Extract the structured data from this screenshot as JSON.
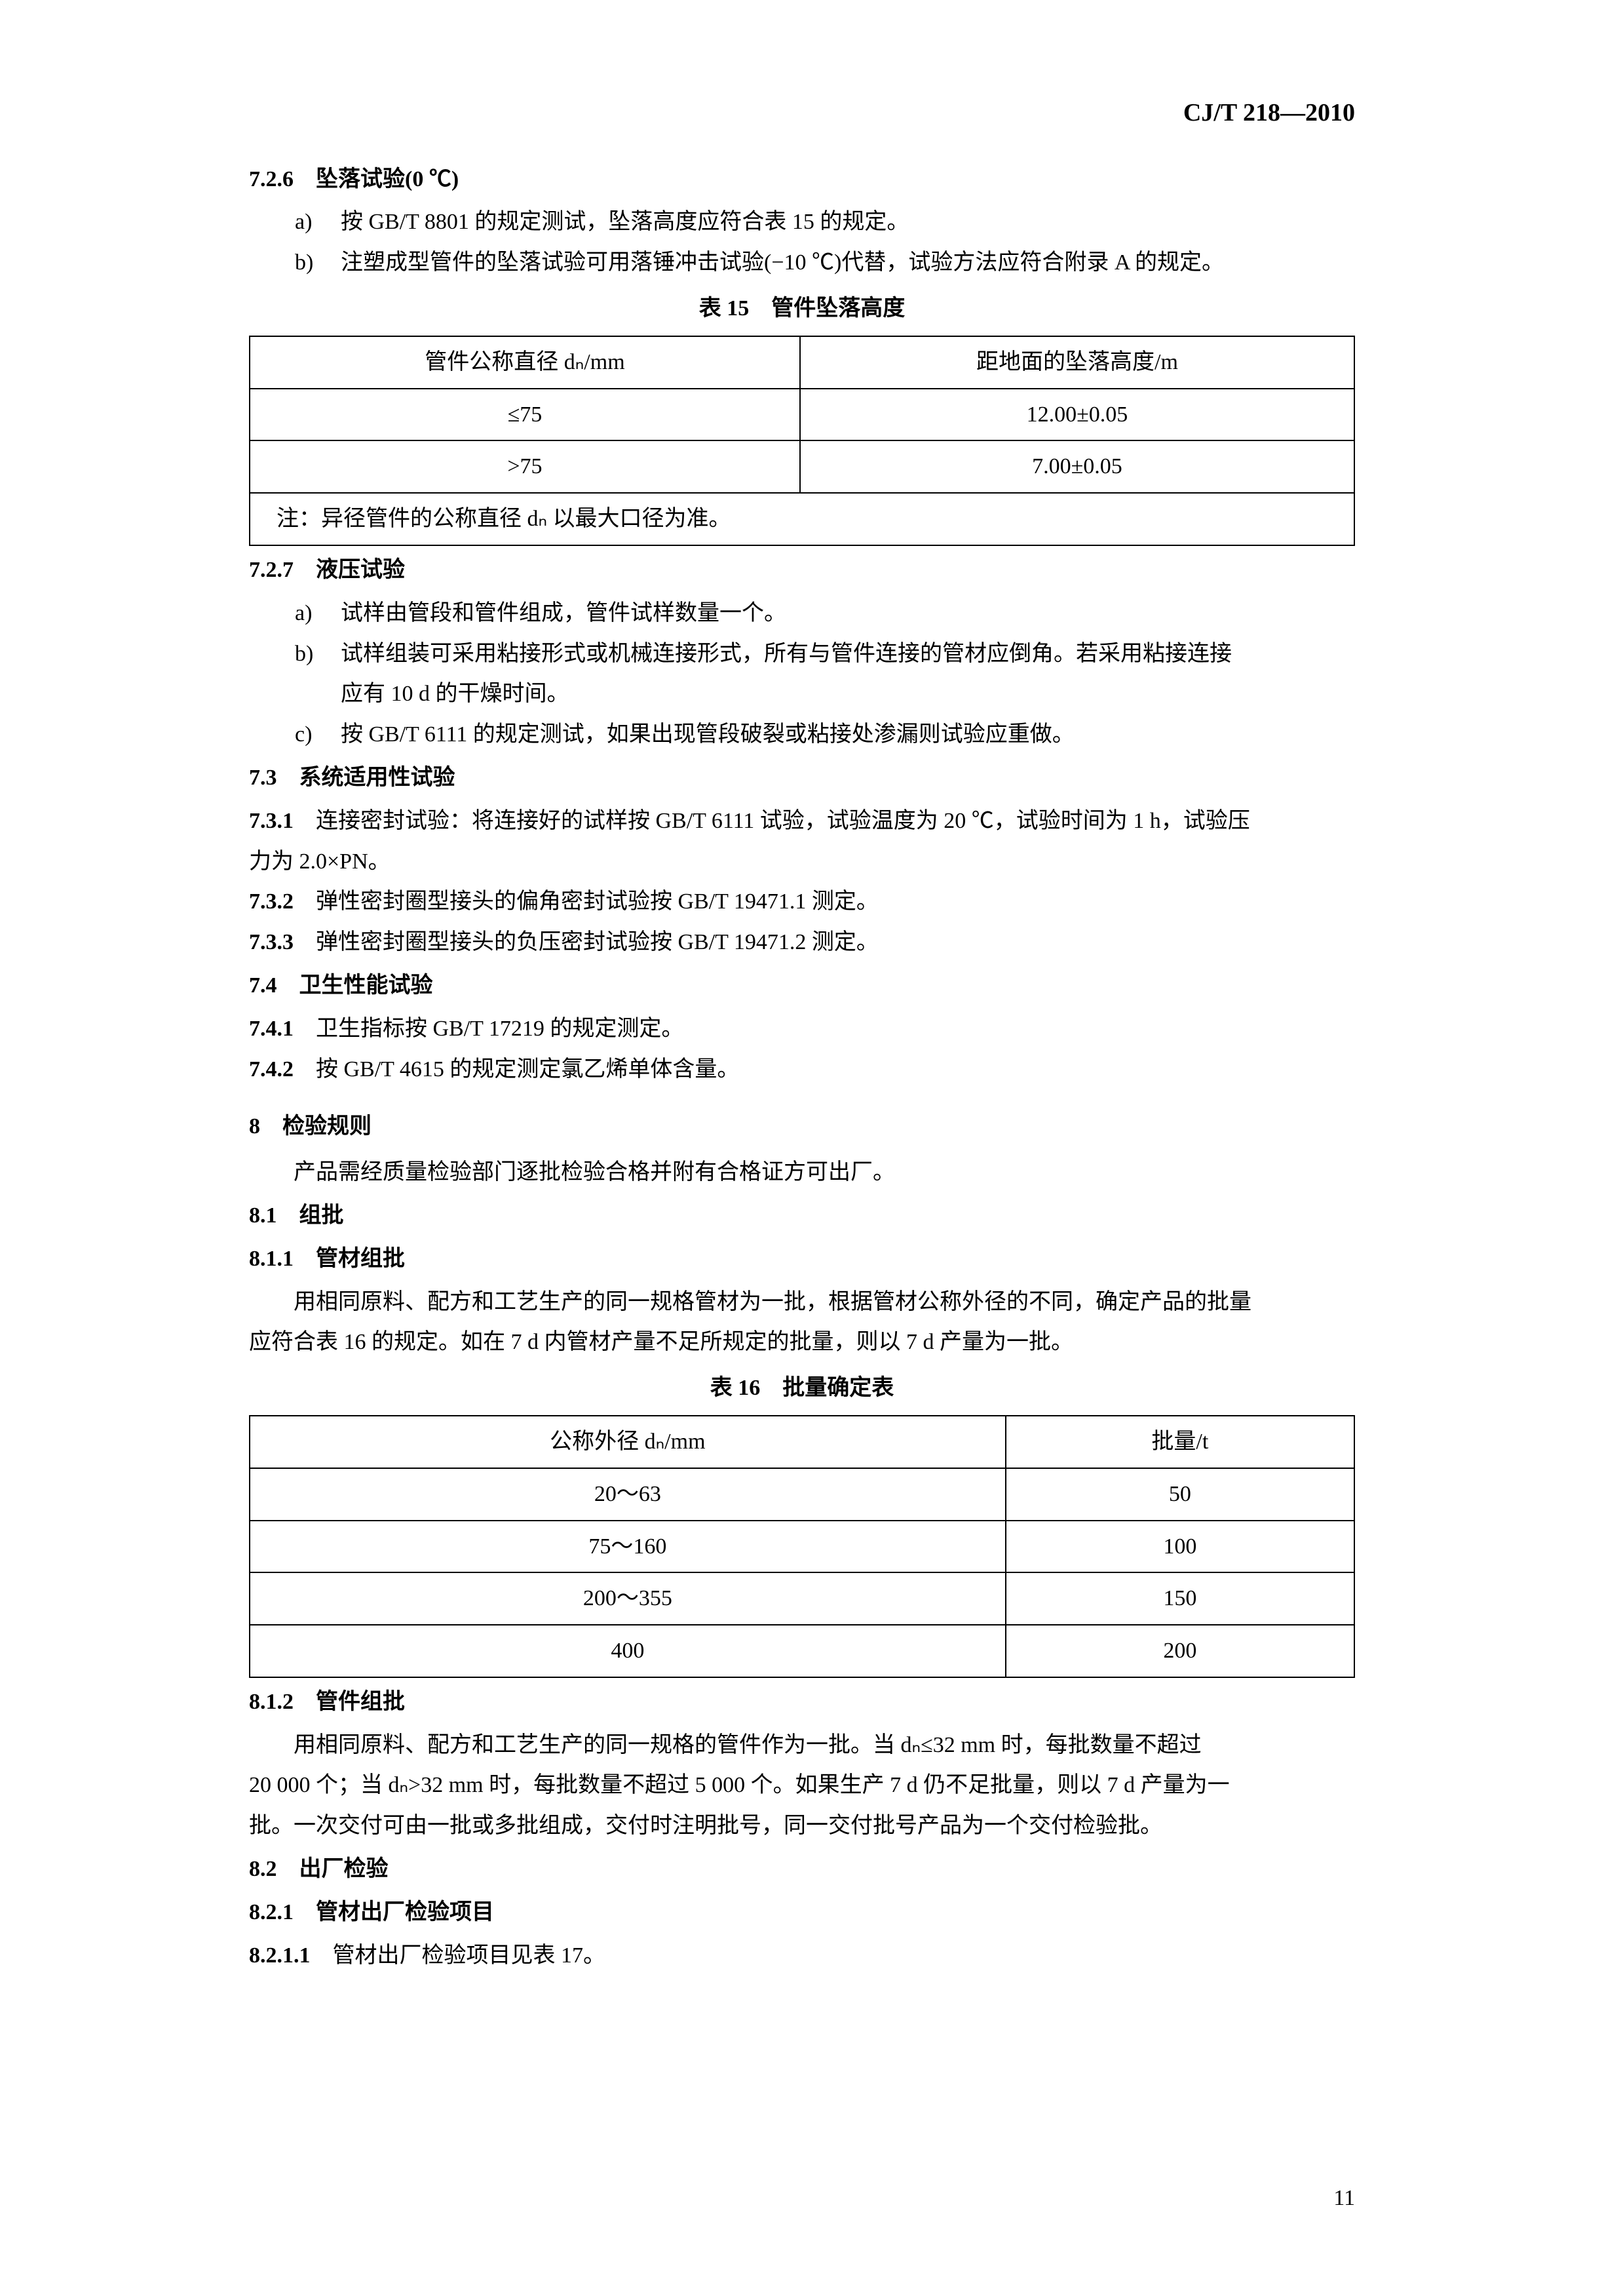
{
  "header": {
    "code": "CJ/T 218—2010"
  },
  "s726": {
    "num": "7.2.6",
    "title": "坠落试验(0 ℃)",
    "items": {
      "a": "按 GB/T 8801 的规定测试，坠落高度应符合表 15 的规定。",
      "b": "注塑成型管件的坠落试验可用落锤冲击试验(−10 ℃)代替，试验方法应符合附录 A 的规定。"
    }
  },
  "table15": {
    "caption": "表 15　管件坠落高度",
    "headers": {
      "col1": "管件公称直径 dₙ/mm",
      "col2": "距地面的坠落高度/m"
    },
    "rows": [
      {
        "c1": "≤75",
        "c2": "12.00±0.05"
      },
      {
        "c1": ">75",
        "c2": "7.00±0.05"
      }
    ],
    "note": "注：异径管件的公称直径 dₙ 以最大口径为准。"
  },
  "s727": {
    "num": "7.2.7",
    "title": "液压试验",
    "items": {
      "a": "试样由管段和管件组成，管件试样数量一个。",
      "b1": "试样组装可采用粘接形式或机械连接形式，所有与管件连接的管材应倒角。若采用粘接连接",
      "b2": "应有 10 d 的干燥时间。",
      "c": "按 GB/T 6111 的规定测试，如果出现管段破裂或粘接处渗漏则试验应重做。"
    }
  },
  "s73": {
    "num": "7.3",
    "title": "系统适用性试验"
  },
  "s731": {
    "num": "7.3.1",
    "text1": "连接密封试验：将连接好的试样按 GB/T 6111 试验，试验温度为 20 ℃，试验时间为 1 h，试验压",
    "text2": "力为 2.0×PN。"
  },
  "s732": {
    "num": "7.3.2",
    "text": "弹性密封圈型接头的偏角密封试验按 GB/T 19471.1 测定。"
  },
  "s733": {
    "num": "7.3.3",
    "text": "弹性密封圈型接头的负压密封试验按 GB/T 19471.2 测定。"
  },
  "s74": {
    "num": "7.4",
    "title": "卫生性能试验"
  },
  "s741": {
    "num": "7.4.1",
    "text": "卫生指标按 GB/T 17219 的规定测定。"
  },
  "s742": {
    "num": "7.4.2",
    "text": "按 GB/T 4615 的规定测定氯乙烯单体含量。"
  },
  "s8": {
    "num": "8",
    "title": "检验规则",
    "intro": "产品需经质量检验部门逐批检验合格并附有合格证方可出厂。"
  },
  "s81": {
    "num": "8.1",
    "title": "组批"
  },
  "s811": {
    "num": "8.1.1",
    "title": "管材组批",
    "para1": "用相同原料、配方和工艺生产的同一规格管材为一批，根据管材公称外径的不同，确定产品的批量",
    "para2": "应符合表 16 的规定。如在 7 d 内管材产量不足所规定的批量，则以 7 d 产量为一批。"
  },
  "table16": {
    "caption": "表 16　批量确定表",
    "headers": {
      "col1": "公称外径 dₙ/mm",
      "col2": "批量/t"
    },
    "rows": [
      {
        "c1": "20～63",
        "c2": "50"
      },
      {
        "c1": "75～160",
        "c2": "100"
      },
      {
        "c1": "200～355",
        "c2": "150"
      },
      {
        "c1": "400",
        "c2": "200"
      }
    ]
  },
  "s812": {
    "num": "8.1.2",
    "title": "管件组批",
    "para1": "用相同原料、配方和工艺生产的同一规格的管件作为一批。当 dₙ≤32 mm 时，每批数量不超过",
    "para2": "20 000 个；当 dₙ>32 mm 时，每批数量不超过 5 000 个。如果生产 7 d 仍不足批量，则以 7 d 产量为一",
    "para3": "批。一次交付可由一批或多批组成，交付时注明批号，同一交付批号产品为一个交付检验批。"
  },
  "s82": {
    "num": "8.2",
    "title": "出厂检验"
  },
  "s821": {
    "num": "8.2.1",
    "title": "管材出厂检验项目"
  },
  "s8211": {
    "num": "8.2.1.1",
    "text": "管材出厂检验项目见表 17。"
  },
  "page": "11"
}
